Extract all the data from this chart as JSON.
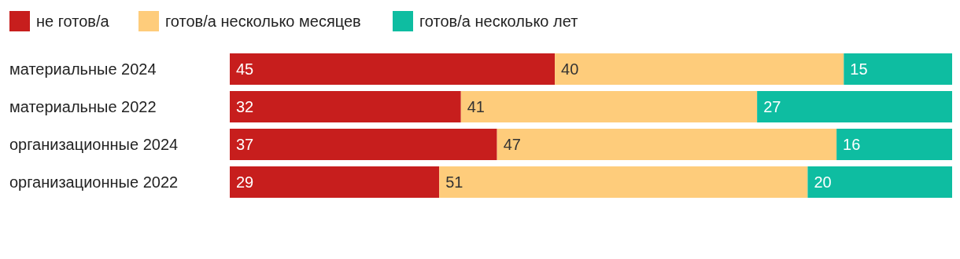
{
  "chart_data": {
    "type": "bar",
    "orientation": "horizontal",
    "stacked": true,
    "data_labels": true,
    "legend": "top left",
    "categories": [
      "материальные 2024",
      "материальные 2022",
      "организационные 2024",
      "организационные 2022"
    ],
    "series": [
      {
        "name": "не готов/а",
        "color": "#c71e1d",
        "values": [
          45,
          32,
          37,
          29
        ]
      },
      {
        "name": "готов/а несколько месяцев",
        "color": "#fecc7b",
        "values": [
          40,
          41,
          47,
          51
        ]
      },
      {
        "name": "готов/а несколько лет",
        "color": "#0ebda1",
        "values": [
          15,
          27,
          16,
          20
        ]
      }
    ]
  }
}
